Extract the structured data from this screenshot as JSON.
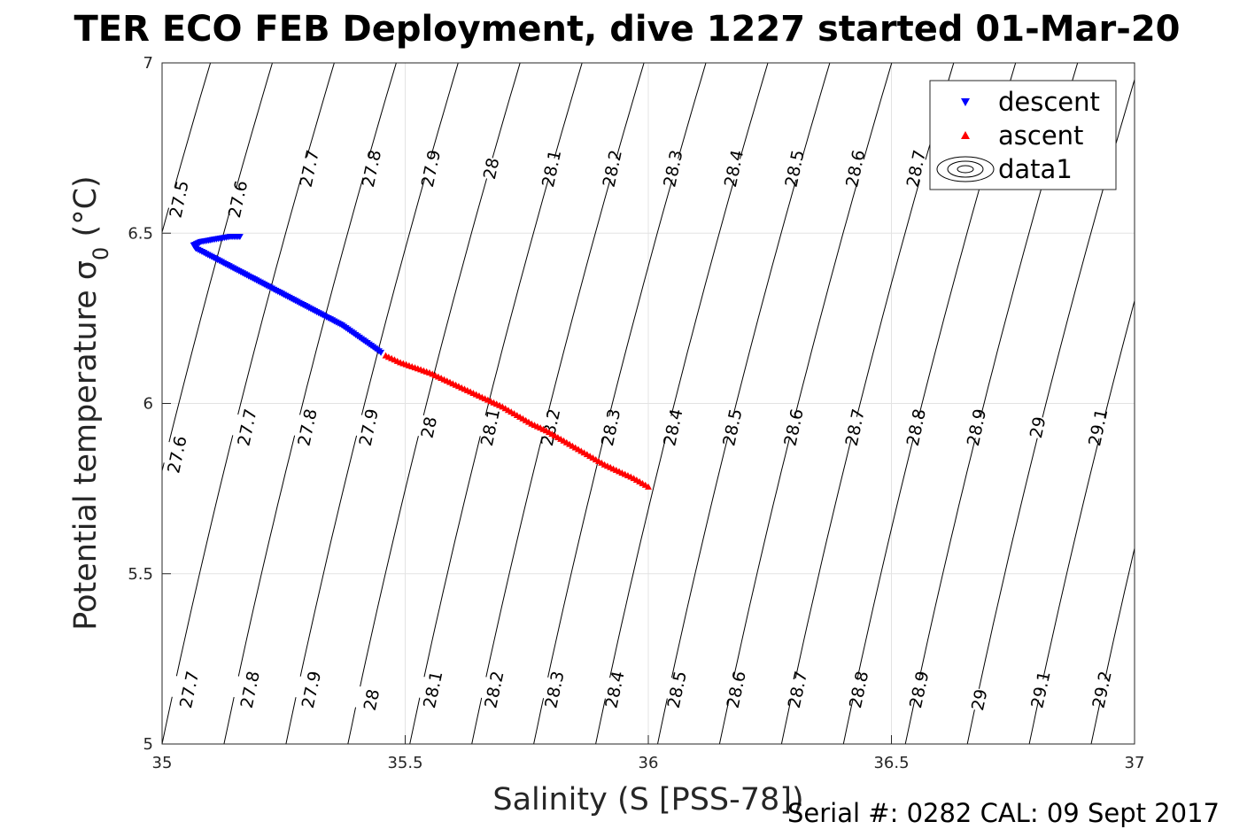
{
  "chart_data": {
    "type": "scatter",
    "title": "TER ECO FEB Deployment, dive 1227 started 01-Mar-20",
    "xlabel": "Salinity (S [PSS-78])",
    "ylabel_main": "Potential temperature ",
    "ylabel_sigma": "σ",
    "ylabel_sub": "0",
    "ylabel_unit": " (°C)",
    "xlim": [
      35,
      37
    ],
    "ylim": [
      5,
      7
    ],
    "x_ticks": [
      35,
      35.5,
      36,
      36.5,
      37
    ],
    "x_tick_labels": [
      "35",
      "35.5",
      "36",
      "36.5",
      "37"
    ],
    "y_ticks": [
      5,
      5.5,
      6,
      6.5,
      7
    ],
    "y_tick_labels": [
      "5",
      "5.5",
      "6",
      "6.5",
      "7"
    ],
    "grid": true,
    "legend_position": "top-right",
    "series": [
      {
        "name": "descent",
        "color": "#0000ff",
        "marker": "triangle-down",
        "x": [
          35.16,
          35.14,
          35.12,
          35.1,
          35.08,
          35.065,
          35.07,
          35.09,
          35.11,
          35.13,
          35.15,
          35.17,
          35.19,
          35.21,
          35.23,
          35.25,
          35.27,
          35.29,
          35.31,
          35.33,
          35.35,
          35.37,
          35.39,
          35.41,
          35.43,
          35.45
        ],
        "y": [
          6.49,
          6.49,
          6.485,
          6.48,
          6.475,
          6.465,
          6.455,
          6.44,
          6.425,
          6.41,
          6.395,
          6.38,
          6.365,
          6.35,
          6.335,
          6.32,
          6.305,
          6.29,
          6.275,
          6.26,
          6.245,
          6.23,
          6.21,
          6.19,
          6.17,
          6.15
        ]
      },
      {
        "name": "ascent",
        "color": "#ff0000",
        "marker": "triangle-up",
        "x": [
          35.46,
          35.49,
          35.52,
          35.55,
          35.58,
          35.61,
          35.64,
          35.67,
          35.7,
          35.73,
          35.76,
          35.79,
          35.82,
          35.85,
          35.88,
          35.91,
          35.94,
          35.97,
          36.0
        ],
        "y": [
          6.14,
          6.12,
          6.105,
          6.09,
          6.07,
          6.05,
          6.03,
          6.01,
          5.99,
          5.965,
          5.94,
          5.92,
          5.895,
          5.87,
          5.845,
          5.82,
          5.8,
          5.78,
          5.755
        ]
      }
    ],
    "legend_extra": "data1",
    "contour_levels": [
      27.5,
      27.6,
      27.7,
      27.8,
      27.9,
      28,
      28.1,
      28.2,
      28.3,
      28.4,
      28.5,
      28.6,
      28.7,
      28.8,
      28.9,
      29,
      29.1,
      29.2
    ],
    "contour_labels": [
      {
        "text": "27.5",
        "x": 35.034,
        "y": 6.6
      },
      {
        "text": "27.6",
        "x": 35.155,
        "y": 6.6
      },
      {
        "text": "27.7",
        "x": 35.302,
        "y": 6.69
      },
      {
        "text": "27.8",
        "x": 35.43,
        "y": 6.69
      },
      {
        "text": "27.9",
        "x": 35.552,
        "y": 6.69
      },
      {
        "text": "28",
        "x": 35.676,
        "y": 6.69
      },
      {
        "text": "28.1",
        "x": 35.8,
        "y": 6.69
      },
      {
        "text": "28.2",
        "x": 35.925,
        "y": 6.69
      },
      {
        "text": "28.3",
        "x": 36.05,
        "y": 6.69
      },
      {
        "text": "28.4",
        "x": 36.175,
        "y": 6.69
      },
      {
        "text": "28.5",
        "x": 36.3,
        "y": 6.69
      },
      {
        "text": "28.6",
        "x": 36.425,
        "y": 6.69
      },
      {
        "text": "28.7",
        "x": 36.55,
        "y": 6.69
      },
      {
        "text": "27.6",
        "x": 35.03,
        "y": 5.85
      },
      {
        "text": "27.7",
        "x": 35.174,
        "y": 5.93
      },
      {
        "text": "27.8",
        "x": 35.298,
        "y": 5.93
      },
      {
        "text": "27.9",
        "x": 35.424,
        "y": 5.93
      },
      {
        "text": "28",
        "x": 35.548,
        "y": 5.93
      },
      {
        "text": "28.1",
        "x": 35.674,
        "y": 5.93
      },
      {
        "text": "28.2",
        "x": 35.798,
        "y": 5.93
      },
      {
        "text": "28.3",
        "x": 35.922,
        "y": 5.93
      },
      {
        "text": "28.4",
        "x": 36.05,
        "y": 5.93
      },
      {
        "text": "28.5",
        "x": 36.172,
        "y": 5.93
      },
      {
        "text": "28.6",
        "x": 36.298,
        "y": 5.93
      },
      {
        "text": "28.7",
        "x": 36.424,
        "y": 5.93
      },
      {
        "text": "28.8",
        "x": 36.55,
        "y": 5.93
      },
      {
        "text": "28.9",
        "x": 36.674,
        "y": 5.93
      },
      {
        "text": "29",
        "x": 36.8,
        "y": 5.93
      },
      {
        "text": "29.1",
        "x": 36.924,
        "y": 5.93
      },
      {
        "text": "27.7",
        "x": 35.055,
        "y": 5.16
      },
      {
        "text": "27.8",
        "x": 35.18,
        "y": 5.16
      },
      {
        "text": "27.9",
        "x": 35.306,
        "y": 5.16
      },
      {
        "text": "28",
        "x": 35.43,
        "y": 5.13
      },
      {
        "text": "28.1",
        "x": 35.556,
        "y": 5.16
      },
      {
        "text": "28.2",
        "x": 35.682,
        "y": 5.16
      },
      {
        "text": "28.3",
        "x": 35.806,
        "y": 5.16
      },
      {
        "text": "28.4",
        "x": 35.93,
        "y": 5.16
      },
      {
        "text": "28.5",
        "x": 36.058,
        "y": 5.16
      },
      {
        "text": "28.6",
        "x": 36.18,
        "y": 5.16
      },
      {
        "text": "28.7",
        "x": 36.306,
        "y": 5.16
      },
      {
        "text": "28.8",
        "x": 36.432,
        "y": 5.16
      },
      {
        "text": "28.9",
        "x": 36.556,
        "y": 5.16
      },
      {
        "text": "29",
        "x": 36.68,
        "y": 5.13
      },
      {
        "text": "29.1",
        "x": 36.806,
        "y": 5.16
      },
      {
        "text": "29.2",
        "x": 36.932,
        "y": 5.16
      }
    ]
  },
  "footer": {
    "serial": "Serial #: 0282  CAL: 09 Sept 2017"
  }
}
